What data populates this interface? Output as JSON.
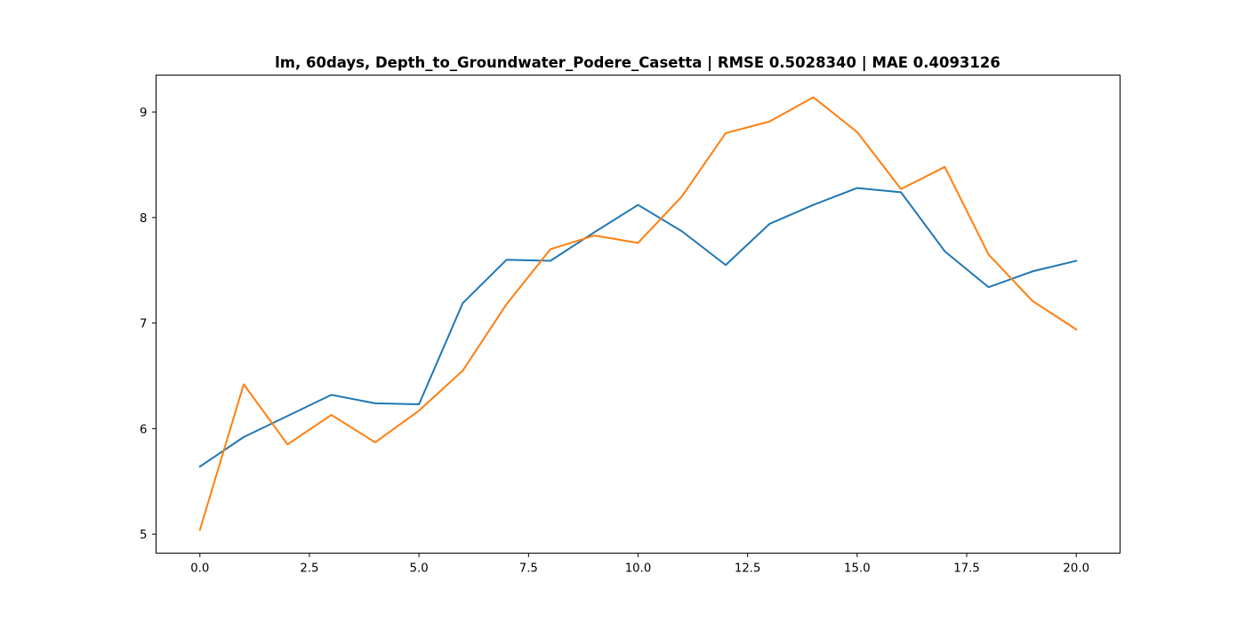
{
  "chart_data": {
    "type": "line",
    "title": "lm, 60days, Depth_to_Groundwater_Podere_Casetta | RMSE 0.5028340 | MAE 0.4093126",
    "xlabel": "",
    "ylabel": "",
    "xlim": [
      -1.0,
      21.0
    ],
    "ylim": [
      4.82,
      9.35
    ],
    "grid": false,
    "legend": "none",
    "x_ticks": [
      0.0,
      2.5,
      5.0,
      7.5,
      10.0,
      12.5,
      15.0,
      17.5,
      20.0
    ],
    "x_tick_labels": [
      "0.0",
      "2.5",
      "5.0",
      "7.5",
      "10.0",
      "12.5",
      "15.0",
      "17.5",
      "20.0"
    ],
    "y_ticks": [
      5,
      6,
      7,
      8,
      9
    ],
    "y_tick_labels": [
      "5",
      "6",
      "7",
      "8",
      "9"
    ],
    "x": [
      0,
      1,
      2,
      3,
      4,
      5,
      6,
      7,
      8,
      9,
      10,
      11,
      12,
      13,
      14,
      15,
      16,
      17,
      18,
      19,
      20
    ],
    "series": [
      {
        "color": "#1f77b4",
        "values": [
          5.64,
          5.92,
          6.12,
          6.32,
          6.24,
          6.23,
          7.19,
          7.6,
          7.59,
          7.86,
          8.12,
          7.87,
          7.55,
          7.94,
          8.12,
          8.28,
          8.24,
          7.68,
          7.34,
          7.49,
          7.59
        ]
      },
      {
        "color": "#ff7f0e",
        "values": [
          5.04,
          6.42,
          5.85,
          6.13,
          5.87,
          6.17,
          6.55,
          7.18,
          7.7,
          7.83,
          7.76,
          8.2,
          8.8,
          8.91,
          9.14,
          8.81,
          8.27,
          8.48,
          7.65,
          7.21,
          6.94
        ]
      }
    ]
  }
}
